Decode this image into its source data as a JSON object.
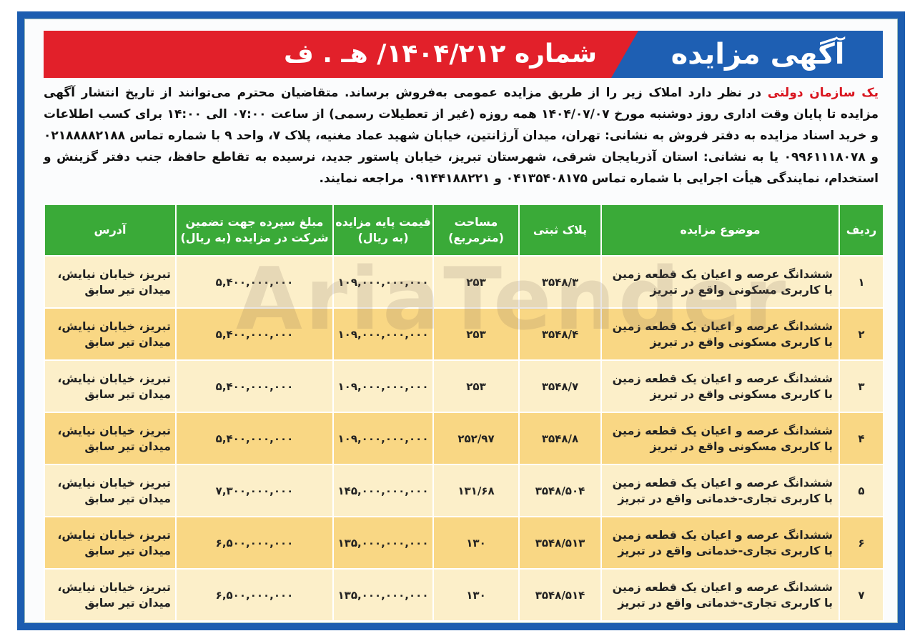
{
  "header": {
    "title": "آگهی مزایده",
    "number": "شماره ۱۴۰۴/۲۱۲/ هـ . ف"
  },
  "intro": {
    "organization": "یک سازمان دولتی",
    "text": " در نظر دارد املاک زیر را از طریق مزایده عمومی به‌فروش برساند. متقاضیان محترم می‌توانند از تاریخ انتشار آگهی مزایده تا پایان وقت اداری روز دوشنبه مورخ ۱۴۰۴/۰۷/۰۷ همه روزه (غیر از تعطیلات رسمی) از ساعت ۰۷:۰۰ الی ۱۴:۰۰ برای کسب اطلاعات و خرید اسناد مزایده به دفتر فروش به نشانی: تهران، میدان آرژانتین، خیابان شهید عماد مغنیه، پلاک ۷، واحد ۹ با شماره تماس ۰۲۱۸۸۸۸۲۱۸۸ و ۰۹۹۶۱۱۱۸۰۷۸ یا به نشانی: استان آذربایجان شرقی، شهرستان تبریز، خیابان پاستور جدید، نرسیده به تقاطع حافظ، جنب دفتر گزینش و استخدام، نمایندگی هیأت اجرایی با شماره تماس ۰۴۱۳۵۴۰۸۱۷۵ و ۰۹۱۴۴۱۸۸۲۲۱ مراجعه نمایند."
  },
  "watermark": "AriaTender",
  "table": {
    "headers": [
      "ردیف",
      "موضوع مزایده",
      "پلاک ثبتی",
      "مساحت (مترمربع)",
      "قیمت پایه مزایده (به ریال)",
      "مبلغ سپرده جهت تضمین شرکت در مزایده (به ریال)",
      "آدرس"
    ],
    "rows": [
      {
        "n": "۱",
        "subject": "ششدانگ عرصه و اعیان یک قطعه زمین با کاربری مسکونی واقع در تبریز",
        "plate": "۳۵۴۸/۳",
        "area": "۲۵۳",
        "price": "۱۰۹,۰۰۰,۰۰۰,۰۰۰",
        "deposit": "۵,۴۰۰,۰۰۰,۰۰۰",
        "address": "تبریز، خیابان نیایش، میدان تیر سابق"
      },
      {
        "n": "۲",
        "subject": "ششدانگ عرصه و اعیان یک قطعه زمین با کاربری مسکونی واقع در تبریز",
        "plate": "۳۵۴۸/۴",
        "area": "۲۵۳",
        "price": "۱۰۹,۰۰۰,۰۰۰,۰۰۰",
        "deposit": "۵,۴۰۰,۰۰۰,۰۰۰",
        "address": "تبریز، خیابان نیایش، میدان تیر سابق"
      },
      {
        "n": "۳",
        "subject": "ششدانگ عرصه و اعیان یک قطعه زمین با کاربری مسکونی واقع در تبریز",
        "plate": "۳۵۴۸/۷",
        "area": "۲۵۳",
        "price": "۱۰۹,۰۰۰,۰۰۰,۰۰۰",
        "deposit": "۵,۴۰۰,۰۰۰,۰۰۰",
        "address": "تبریز، خیابان نیایش، میدان تیر سابق"
      },
      {
        "n": "۴",
        "subject": "ششدانگ عرصه و اعیان یک قطعه زمین با کاربری مسکونی واقع در تبریز",
        "plate": "۳۵۴۸/۸",
        "area": "۲۵۲/۹۷",
        "price": "۱۰۹,۰۰۰,۰۰۰,۰۰۰",
        "deposit": "۵,۴۰۰,۰۰۰,۰۰۰",
        "address": "تبریز، خیابان نیایش، میدان تیر سابق"
      },
      {
        "n": "۵",
        "subject": "ششدانگ عرصه و اعیان یک قطعه زمین با کاربری تجاری-خدماتی واقع در تبریز",
        "plate": "۳۵۴۸/۵۰۴",
        "area": "۱۳۱/۶۸",
        "price": "۱۴۵,۰۰۰,۰۰۰,۰۰۰",
        "deposit": "۷,۳۰۰,۰۰۰,۰۰۰",
        "address": "تبریز، خیابان نیایش، میدان تیر سابق"
      },
      {
        "n": "۶",
        "subject": "ششدانگ عرصه و اعیان یک قطعه زمین با کاربری تجاری-خدماتی واقع در تبریز",
        "plate": "۳۵۴۸/۵۱۳",
        "area": "۱۳۰",
        "price": "۱۳۵,۰۰۰,۰۰۰,۰۰۰",
        "deposit": "۶,۵۰۰,۰۰۰,۰۰۰",
        "address": "تبریز، خیابان نیایش، میدان تیر سابق"
      },
      {
        "n": "۷",
        "subject": "ششدانگ عرصه و اعیان یک قطعه زمین با کاربری تجاری-خدماتی واقع در تبریز",
        "plate": "۳۵۴۸/۵۱۴",
        "area": "۱۳۰",
        "price": "۱۳۵,۰۰۰,۰۰۰,۰۰۰",
        "deposit": "۶,۵۰۰,۰۰۰,۰۰۰",
        "address": "تبریز، خیابان نیایش، میدان تیر سابق"
      }
    ]
  },
  "colors": {
    "frame": "#1c5db0",
    "banner_red": "#e2202a",
    "header_green": "#3aaa38",
    "row_light": "#fcefc9",
    "row_dark": "#f9d784",
    "org_red": "#d9151f"
  }
}
